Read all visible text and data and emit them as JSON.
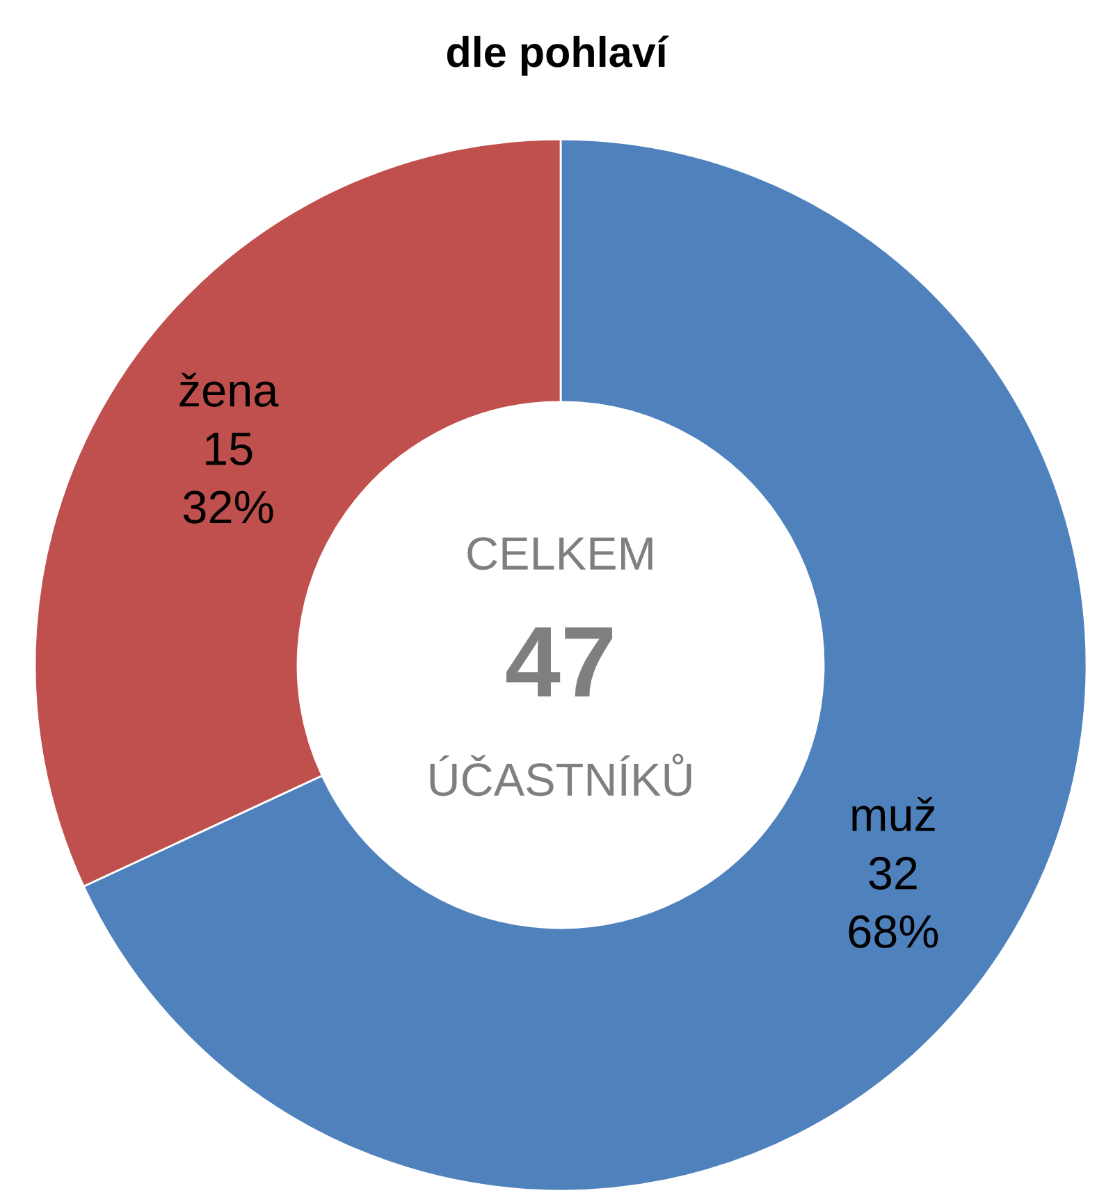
{
  "chart_data": {
    "type": "donut",
    "title": "dle pohlaví",
    "categories": [
      "muž",
      "žena"
    ],
    "values": [
      32,
      15
    ],
    "colors": [
      "#4f81bd",
      "#c0504d"
    ],
    "value_labels": [
      "32\n68%",
      "15\n32%"
    ],
    "annotations": [
      "CELKEM",
      "47",
      "ÚČASTNÍKŮ"
    ]
  }
}
